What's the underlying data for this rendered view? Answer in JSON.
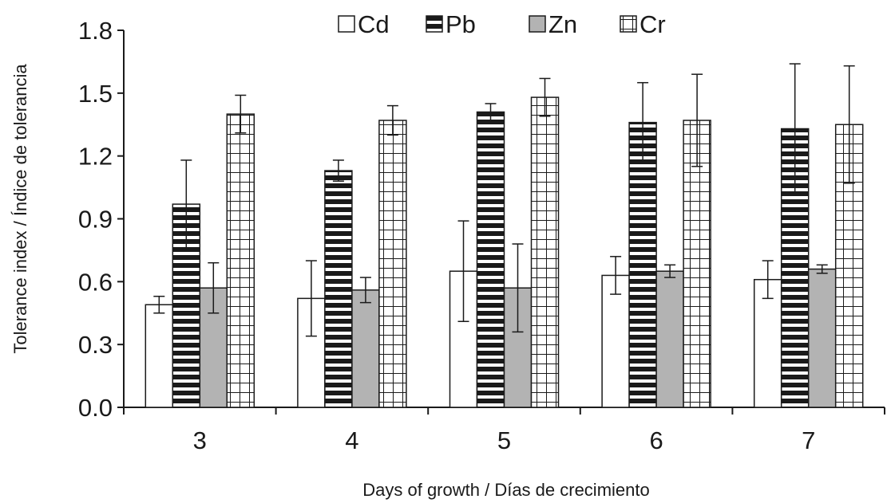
{
  "chart_data": {
    "type": "bar",
    "xlabel": "Days of growth / Días de crecimiento",
    "ylabel": "Tolerance index / Índice de tolerancia",
    "ylim": [
      0,
      1.8
    ],
    "yticks": [
      "0.0",
      "0.3",
      "0.6",
      "0.9",
      "1.2",
      "1.5",
      "1.8"
    ],
    "categories": [
      "3",
      "4",
      "5",
      "6",
      "7"
    ],
    "legend_position": "top",
    "grid": false,
    "series": [
      {
        "name": "Cd",
        "pattern": "white",
        "values": [
          0.49,
          0.52,
          0.65,
          0.63,
          0.61
        ],
        "errors": [
          0.04,
          0.18,
          0.24,
          0.09,
          0.09
        ]
      },
      {
        "name": "Pb",
        "pattern": "horizontal-stripes",
        "values": [
          0.97,
          1.13,
          1.41,
          1.36,
          1.33
        ],
        "errors": [
          0.21,
          0.05,
          0.04,
          0.19,
          0.31
        ]
      },
      {
        "name": "Zn",
        "pattern": "gray",
        "values": [
          0.57,
          0.56,
          0.57,
          0.65,
          0.66
        ],
        "errors": [
          0.12,
          0.06,
          0.21,
          0.03,
          0.02
        ]
      },
      {
        "name": "Cr",
        "pattern": "grid",
        "values": [
          1.4,
          1.37,
          1.48,
          1.37,
          1.35
        ],
        "errors": [
          0.09,
          0.07,
          0.09,
          0.22,
          0.28
        ]
      }
    ],
    "colors": {
      "axis": "#1a1a1a",
      "zn_fill": "#b3b3b3",
      "bar_stroke": "#1a1a1a"
    }
  }
}
